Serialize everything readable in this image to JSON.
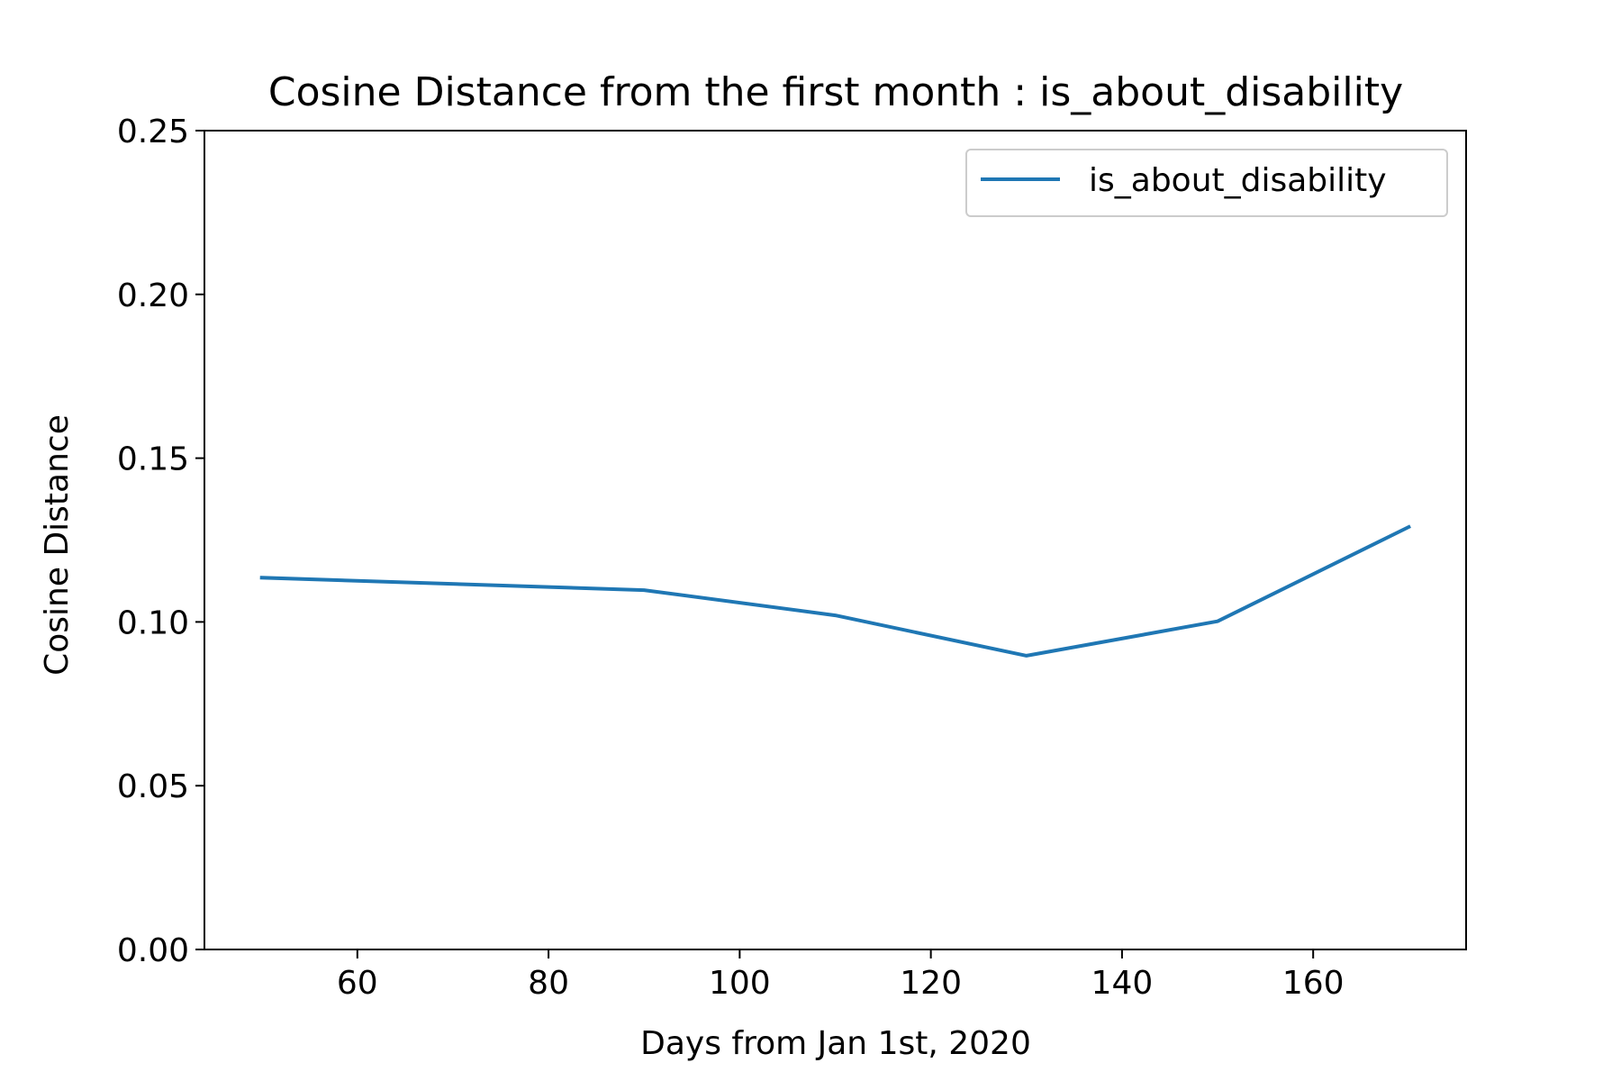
{
  "chart_data": {
    "type": "line",
    "title": "Cosine Distance from the first month : is_about_disability",
    "xlabel": "Days from Jan 1st, 2020",
    "ylabel": "Cosine Distance",
    "xlim": [
      44,
      176
    ],
    "ylim": [
      0.0,
      0.25
    ],
    "x_ticks": [
      60,
      80,
      100,
      120,
      140,
      160
    ],
    "x_tick_labels": [
      "60",
      "80",
      "100",
      "120",
      "140",
      "160"
    ],
    "y_ticks": [
      0.0,
      0.05,
      0.1,
      0.15,
      0.2,
      0.25
    ],
    "y_tick_labels": [
      "0.00",
      "0.05",
      "0.10",
      "0.15",
      "0.20",
      "0.25"
    ],
    "grid": false,
    "legend_position": "top-right",
    "series": [
      {
        "name": "is_about_disability",
        "color": "#1f77b4",
        "x": [
          50,
          90,
          110,
          130,
          150,
          170
        ],
        "y": [
          0.1135,
          0.1097,
          0.102,
          0.0897,
          0.1002,
          0.129
        ]
      }
    ]
  }
}
